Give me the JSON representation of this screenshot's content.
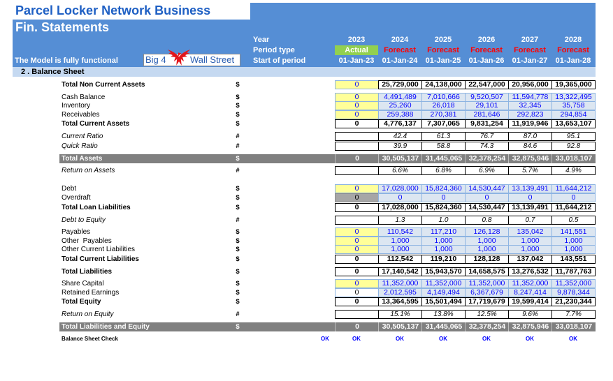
{
  "header": {
    "title": "Parcel Locker Network Business",
    "subtitle": "Fin. Statements",
    "model_note": "The Model is fully functional",
    "logo": {
      "left": "Big 4",
      "right": "Wall Street"
    },
    "row_labels": {
      "year": "Year",
      "period_type": "Period type",
      "start": "Start of period"
    },
    "periods": [
      {
        "year": "2023",
        "type": "Actual",
        "start": "01-Jan-23"
      },
      {
        "year": "2024",
        "type": "Forecast",
        "start": "01-Jan-24"
      },
      {
        "year": "2025",
        "type": "Forecast",
        "start": "01-Jan-25"
      },
      {
        "year": "2026",
        "type": "Forecast",
        "start": "01-Jan-26"
      },
      {
        "year": "2027",
        "type": "Forecast",
        "start": "01-Jan-27"
      },
      {
        "year": "2028",
        "type": "Forecast",
        "start": "01-Jan-28"
      }
    ]
  },
  "section": {
    "title": "2 . Balance Sheet"
  },
  "rows": [
    {
      "label": "Total Non Current Assets",
      "unit": "$",
      "actual": "0",
      "values": [
        "25,729,000",
        "24,138,000",
        "22,547,000",
        "20,956,000",
        "19,365,000"
      ]
    },
    {
      "label": "Cash Balance",
      "unit": "$",
      "actual": "0",
      "values": [
        "4,491,489",
        "7,010,666",
        "9,520,507",
        "11,594,778",
        "13,322,495"
      ]
    },
    {
      "label": "Inventory",
      "unit": "$",
      "actual": "0",
      "values": [
        "25,260",
        "26,018",
        "29,101",
        "32,345",
        "35,758"
      ]
    },
    {
      "label": "Receivables",
      "unit": "$",
      "actual": "0",
      "values": [
        "259,388",
        "270,381",
        "281,646",
        "292,823",
        "294,854"
      ]
    },
    {
      "label": "Total Current Assets",
      "unit": "$",
      "actual": "0",
      "values": [
        "4,776,137",
        "7,307,065",
        "9,831,254",
        "11,919,946",
        "13,653,107"
      ]
    },
    {
      "label": "Current Ratio",
      "unit": "#",
      "actual": "",
      "values": [
        "42.4",
        "61.3",
        "76.7",
        "87.0",
        "95.1"
      ]
    },
    {
      "label": "Quick Ratio",
      "unit": "#",
      "actual": "",
      "values": [
        "39.9",
        "58.8",
        "74.3",
        "84.6",
        "92.8"
      ]
    },
    {
      "label": "Total Assets",
      "unit": "$",
      "actual": "0",
      "values": [
        "30,505,137",
        "31,445,065",
        "32,378,254",
        "32,875,946",
        "33,018,107"
      ]
    },
    {
      "label": "Return on Assets",
      "unit": "#",
      "actual": "",
      "values": [
        "6.6%",
        "6.8%",
        "6.9%",
        "5.7%",
        "4.9%"
      ]
    },
    {
      "label": "Debt",
      "unit": "$",
      "actual": "0",
      "values": [
        "17,028,000",
        "15,824,360",
        "14,530,447",
        "13,139,491",
        "11,644,212"
      ]
    },
    {
      "label": "Overdraft",
      "unit": "$",
      "actual": "0",
      "values": [
        "0",
        "0",
        "0",
        "0",
        "0"
      ]
    },
    {
      "label": "Total Loan Liabilities",
      "unit": "$",
      "actual": "0",
      "values": [
        "17,028,000",
        "15,824,360",
        "14,530,447",
        "13,139,491",
        "11,644,212"
      ]
    },
    {
      "label": "Debt to Equity",
      "unit": "#",
      "actual": "",
      "values": [
        "1.3",
        "1.0",
        "0.8",
        "0.7",
        "0.5"
      ]
    },
    {
      "label": "Payables",
      "unit": "$",
      "actual": "0",
      "values": [
        "110,542",
        "117,210",
        "126,128",
        "135,042",
        "141,551"
      ]
    },
    {
      "label": "Other  Payables",
      "unit": "$",
      "actual": "0",
      "values": [
        "1,000",
        "1,000",
        "1,000",
        "1,000",
        "1,000"
      ]
    },
    {
      "label": "Other Current Liabilities",
      "unit": "$",
      "actual": "0",
      "values": [
        "1,000",
        "1,000",
        "1,000",
        "1,000",
        "1,000"
      ]
    },
    {
      "label": "Total Current Liabilities",
      "unit": "$",
      "actual": "0",
      "values": [
        "112,542",
        "119,210",
        "128,128",
        "137,042",
        "143,551"
      ]
    },
    {
      "label": "Total Liabilities",
      "unit": "$",
      "actual": "0",
      "values": [
        "17,140,542",
        "15,943,570",
        "14,658,575",
        "13,276,532",
        "11,787,763"
      ]
    },
    {
      "label": "Share Capital",
      "unit": "$",
      "actual": "0",
      "values": [
        "11,352,000",
        "11,352,000",
        "11,352,000",
        "11,352,000",
        "11,352,000"
      ]
    },
    {
      "label": "Retained Earnings",
      "unit": "$",
      "actual": "0",
      "values": [
        "2,012,595",
        "4,149,494",
        "6,367,679",
        "8,247,414",
        "9,878,344"
      ]
    },
    {
      "label": "Total Equity",
      "unit": "$",
      "actual": "0",
      "values": [
        "13,364,595",
        "15,501,494",
        "17,719,679",
        "19,599,414",
        "21,230,344"
      ]
    },
    {
      "label": "Return on Equity",
      "unit": "#",
      "actual": "",
      "values": [
        "15.1%",
        "13.8%",
        "12.5%",
        "9.6%",
        "7.7%"
      ]
    },
    {
      "label": "Total Liabilities and Equity",
      "unit": "$",
      "actual": "0",
      "values": [
        "30,505,137",
        "31,445,065",
        "32,378,254",
        "32,875,946",
        "33,018,107"
      ]
    }
  ],
  "check": {
    "label": "Balance Sheet Check",
    "overall": "OK",
    "values": [
      "OK",
      "OK",
      "OK",
      "OK",
      "OK",
      "OK"
    ]
  },
  "icons": {
    "logo": "eagle-logo-icon"
  },
  "colors": {
    "header_blue": "#558ED5",
    "title_blue": "#1F60C4",
    "section_blue": "#C5D9F1",
    "input_fill": "#DCE6F1",
    "input_text": "#0000FF",
    "assumption_fill": "#FFFF99",
    "actual_fill": "#92D050",
    "forecast_text": "#FF0000",
    "band_gray": "#808080",
    "logo_blue": "#2A5DB0",
    "logo_red": "#E3161B",
    "check_text": "#0000FF"
  }
}
